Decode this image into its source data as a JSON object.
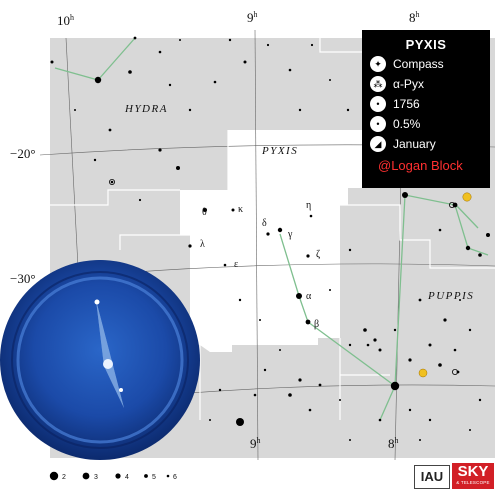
{
  "map": {
    "ra_labels": [
      {
        "value": "10",
        "unit": "h"
      },
      {
        "value": "9",
        "unit": "h"
      },
      {
        "value": "8",
        "unit": "h"
      }
    ],
    "dec_labels": [
      "−20°",
      "−30°"
    ],
    "constellations": [
      "HYDRA",
      "PYXIS",
      "PUPPIS"
    ],
    "greek_letters": [
      "θ",
      "κ",
      "δ",
      "γ",
      "η",
      "λ",
      "ε",
      "ζ",
      "α",
      "β"
    ],
    "colors": {
      "background": "#d8d8d8",
      "highlight": "#ffffff",
      "boundary": "#ffffff",
      "grid": "#666666",
      "stick_figure": "#7fbf8f",
      "stars": "#000000",
      "planet": "#f0c020"
    }
  },
  "legend": {
    "magnitudes": [
      "2",
      "3",
      "4",
      "5",
      "6"
    ]
  },
  "info_panel": {
    "title": "PYXIS",
    "rows": [
      {
        "icon": "compass-icon",
        "text": "Compass"
      },
      {
        "icon": "star-cluster-icon",
        "text": "α-Pyx"
      },
      {
        "icon": "dot-icon",
        "text": "1756"
      },
      {
        "icon": "dot-icon",
        "text": "0.5%"
      },
      {
        "icon": "calendar-icon",
        "text": "January"
      }
    ],
    "author": "@Logan Block"
  },
  "logo": {
    "iau": "IAU",
    "sky": "SKY",
    "sky_sub": "& TELESCOPE"
  }
}
